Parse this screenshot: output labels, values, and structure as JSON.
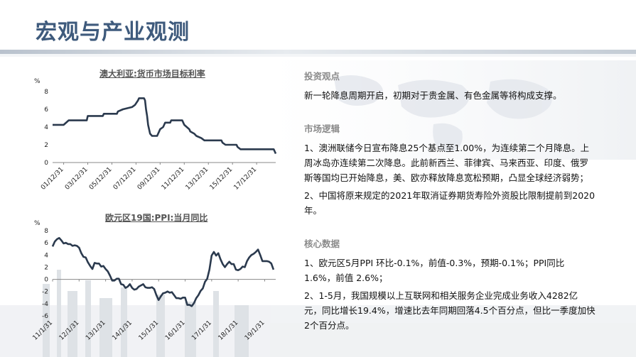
{
  "page": {
    "title": "宏观与产业观测"
  },
  "charts": [
    {
      "title": "澳大利亚:货币市场目标利率",
      "unit": "%"
    },
    {
      "title": "欧元区19国:PPI:当月同比",
      "unit": "%"
    }
  ],
  "chart_data": [
    {
      "type": "line",
      "title": "澳大利亚:货币市场目标利率",
      "ylabel": "%",
      "ylim": [
        0,
        8
      ],
      "yticks": [
        0,
        2,
        4,
        6,
        8
      ],
      "xlim": [
        "2001-01",
        "2019-07"
      ],
      "xtick_labels": [
        "01/12/31",
        "03/12/31",
        "05/12/31",
        "07/12/31",
        "09/12/31",
        "11/12/31",
        "13/12/31",
        "15/12/31",
        "17/12/31"
      ],
      "xtick_dates": [
        "2001-12",
        "2003-12",
        "2005-12",
        "2007-12",
        "2009-12",
        "2011-12",
        "2013-12",
        "2015-12",
        "2017-12"
      ],
      "series": [
        {
          "color": "#2b3a4e",
          "points": [
            [
              "2001-01",
              4.25
            ],
            [
              "2001-12",
              4.25
            ],
            [
              "2002-05",
              4.75
            ],
            [
              "2003-11",
              4.75
            ],
            [
              "2003-12",
              5.25
            ],
            [
              "2005-03",
              5.25
            ],
            [
              "2005-04",
              5.5
            ],
            [
              "2006-05",
              5.5
            ],
            [
              "2006-06",
              5.75
            ],
            [
              "2006-11",
              6.0
            ],
            [
              "2007-08",
              6.25
            ],
            [
              "2007-11",
              6.5
            ],
            [
              "2008-02",
              7.0
            ],
            [
              "2008-03",
              7.25
            ],
            [
              "2008-08",
              7.25
            ],
            [
              "2008-09",
              7.0
            ],
            [
              "2008-10",
              6.0
            ],
            [
              "2008-11",
              5.25
            ],
            [
              "2008-12",
              4.25
            ],
            [
              "2009-02",
              3.25
            ],
            [
              "2009-04",
              3.0
            ],
            [
              "2009-09",
              3.0
            ],
            [
              "2009-10",
              3.25
            ],
            [
              "2009-11",
              3.5
            ],
            [
              "2009-12",
              3.75
            ],
            [
              "2010-03",
              4.0
            ],
            [
              "2010-04",
              4.25
            ],
            [
              "2010-05",
              4.5
            ],
            [
              "2010-10",
              4.5
            ],
            [
              "2010-11",
              4.75
            ],
            [
              "2011-10",
              4.75
            ],
            [
              "2011-11",
              4.5
            ],
            [
              "2011-12",
              4.25
            ],
            [
              "2012-05",
              3.75
            ],
            [
              "2012-06",
              3.5
            ],
            [
              "2012-10",
              3.25
            ],
            [
              "2012-12",
              3.0
            ],
            [
              "2013-05",
              2.75
            ],
            [
              "2013-08",
              2.5
            ],
            [
              "2015-01",
              2.5
            ],
            [
              "2015-02",
              2.25
            ],
            [
              "2015-05",
              2.0
            ],
            [
              "2016-04",
              2.0
            ],
            [
              "2016-05",
              1.75
            ],
            [
              "2016-08",
              1.5
            ],
            [
              "2019-05",
              1.5
            ],
            [
              "2019-06",
              1.25
            ],
            [
              "2019-07",
              1.0
            ]
          ]
        }
      ]
    },
    {
      "type": "line",
      "title": "欧元区19国:PPI:当月同比",
      "ylabel": "%",
      "ylim": [
        -6,
        8
      ],
      "yticks": [
        -6,
        -4,
        -2,
        0,
        2,
        4,
        6,
        8
      ],
      "xlim": [
        "2011-01",
        "2019-06"
      ],
      "xtick_labels": [
        "11/1/31",
        "12/1/31",
        "13/1/31",
        "14/1/31",
        "15/1/31",
        "16/1/31",
        "17/1/31",
        "18/1/31",
        "19/1/31"
      ],
      "xtick_dates": [
        "2011-01",
        "2012-01",
        "2013-01",
        "2014-01",
        "2015-01",
        "2016-01",
        "2017-01",
        "2018-01",
        "2019-01"
      ],
      "series": [
        {
          "color": "#2b3a4e",
          "points": [
            [
              "2011-01",
              5.4
            ],
            [
              "2011-02",
              6.2
            ],
            [
              "2011-03",
              6.6
            ],
            [
              "2011-04",
              6.8
            ],
            [
              "2011-05",
              6.4
            ],
            [
              "2011-06",
              5.9
            ],
            [
              "2011-07",
              6.0
            ],
            [
              "2011-08",
              5.8
            ],
            [
              "2011-09",
              5.8
            ],
            [
              "2011-10",
              5.5
            ],
            [
              "2011-11",
              5.6
            ],
            [
              "2011-12",
              5.5
            ],
            [
              "2012-01",
              5.2
            ],
            [
              "2012-02",
              4.3
            ],
            [
              "2012-03",
              3.7
            ],
            [
              "2012-04",
              3.6
            ],
            [
              "2012-05",
              2.8
            ],
            [
              "2012-06",
              2.2
            ],
            [
              "2012-07",
              1.7
            ],
            [
              "2012-08",
              2.7
            ],
            [
              "2012-09",
              2.6
            ],
            [
              "2012-10",
              2.6
            ],
            [
              "2012-11",
              2.1
            ],
            [
              "2012-12",
              2.2
            ],
            [
              "2013-01",
              1.7
            ],
            [
              "2013-02",
              1.3
            ],
            [
              "2013-03",
              0.6
            ],
            [
              "2013-04",
              -0.2
            ],
            [
              "2013-05",
              -0.2
            ],
            [
              "2013-06",
              0.1
            ],
            [
              "2013-07",
              0.1
            ],
            [
              "2013-08",
              -0.8
            ],
            [
              "2013-09",
              -0.9
            ],
            [
              "2013-10",
              -1.4
            ],
            [
              "2013-11",
              -1.2
            ],
            [
              "2013-12",
              -0.8
            ],
            [
              "2014-01",
              -1.4
            ],
            [
              "2014-02",
              -1.7
            ],
            [
              "2014-03",
              -1.6
            ],
            [
              "2014-04",
              -1.2
            ],
            [
              "2014-05",
              -1.0
            ],
            [
              "2014-06",
              -0.8
            ],
            [
              "2014-07",
              -1.3
            ],
            [
              "2014-08",
              -1.4
            ],
            [
              "2014-09",
              -1.4
            ],
            [
              "2014-10",
              -1.3
            ],
            [
              "2014-11",
              -1.6
            ],
            [
              "2014-12",
              -2.6
            ],
            [
              "2015-01",
              -3.4
            ],
            [
              "2015-02",
              -2.8
            ],
            [
              "2015-03",
              -2.3
            ],
            [
              "2015-04",
              -2.2
            ],
            [
              "2015-05",
              -2.0
            ],
            [
              "2015-06",
              -2.2
            ],
            [
              "2015-07",
              -2.1
            ],
            [
              "2015-08",
              -2.6
            ],
            [
              "2015-09",
              -3.1
            ],
            [
              "2015-10",
              -3.1
            ],
            [
              "2015-11",
              -3.2
            ],
            [
              "2015-12",
              -3.0
            ],
            [
              "2016-01",
              -3.0
            ],
            [
              "2016-02",
              -4.2
            ],
            [
              "2016-03",
              -4.2
            ],
            [
              "2016-04",
              -4.4
            ],
            [
              "2016-05",
              -3.9
            ],
            [
              "2016-06",
              -3.1
            ],
            [
              "2016-07",
              -2.6
            ],
            [
              "2016-08",
              -1.9
            ],
            [
              "2016-09",
              -1.5
            ],
            [
              "2016-10",
              -0.4
            ],
            [
              "2016-11",
              0.1
            ],
            [
              "2016-12",
              1.6
            ],
            [
              "2017-01",
              3.9
            ],
            [
              "2017-02",
              4.5
            ],
            [
              "2017-03",
              3.9
            ],
            [
              "2017-04",
              4.3
            ],
            [
              "2017-05",
              3.3
            ],
            [
              "2017-06",
              2.5
            ],
            [
              "2017-07",
              2.0
            ],
            [
              "2017-08",
              2.5
            ],
            [
              "2017-09",
              2.9
            ],
            [
              "2017-10",
              2.5
            ],
            [
              "2017-11",
              2.5
            ],
            [
              "2017-12",
              1.6
            ],
            [
              "2018-01",
              1.5
            ],
            [
              "2018-02",
              1.7
            ],
            [
              "2018-03",
              2.1
            ],
            [
              "2018-04",
              2.0
            ],
            [
              "2018-05",
              3.0
            ],
            [
              "2018-06",
              3.6
            ],
            [
              "2018-07",
              4.0
            ],
            [
              "2018-08",
              4.2
            ],
            [
              "2018-09",
              4.5
            ],
            [
              "2018-10",
              4.9
            ],
            [
              "2018-11",
              4.0
            ],
            [
              "2018-12",
              3.0
            ],
            [
              "2019-01",
              3.0
            ],
            [
              "2019-02",
              3.0
            ],
            [
              "2019-03",
              2.9
            ],
            [
              "2019-04",
              2.6
            ],
            [
              "2019-05",
              1.6
            ]
          ]
        }
      ]
    }
  ],
  "sections": [
    {
      "title": "投资观点",
      "paragraphs": [
        "新一轮降息周期开启，初期对于贵金属、有色金属等将构成支撑。"
      ]
    },
    {
      "title": "市场逻辑",
      "paragraphs": [
        "1、澳洲联储今日宣布降息25个基点至1.00%，为连续第二个月降息。上周冰岛亦连续第二次降息。此前新西兰、菲律宾、马来西亚、印度、俄罗斯等国均已开始降息，美、欧亦释放降息宽松预期，凸显全球经济弱势；",
        "2、中国将原来规定的2021年取消证券期货寿险外资股比限制提前到2020年。"
      ]
    },
    {
      "title": "核心数据",
      "paragraphs": [
        "1、欧元区5月PPI 环比-0.1%，前值-0.3%，预期-0.1%；PPI同比1.6%，前值 2.6%；",
        "2、1-5月，我国规模以上互联网和相关服务企业完成业务收入4282亿元，同比增长19.4%，增速比去年同期回落4.5个百分点，但比一季度加快2个百分点。"
      ]
    }
  ]
}
